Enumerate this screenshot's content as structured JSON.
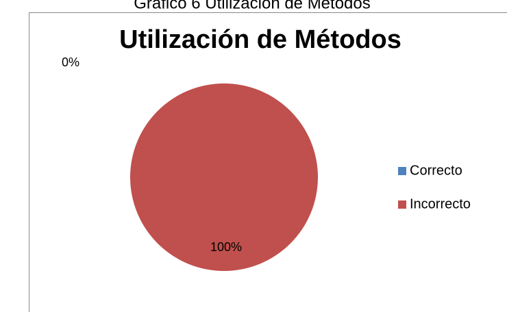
{
  "caption": "Gráfico 6 Utilización de Métodos",
  "chart_data": {
    "type": "pie",
    "title": "Utilización de Métodos",
    "categories": [
      "Correcto",
      "Incorrecto"
    ],
    "values": [
      0,
      100
    ],
    "value_labels": [
      "0%",
      "100%"
    ],
    "colors": [
      "#4f81bd",
      "#c0504d"
    ],
    "legend": "right"
  }
}
